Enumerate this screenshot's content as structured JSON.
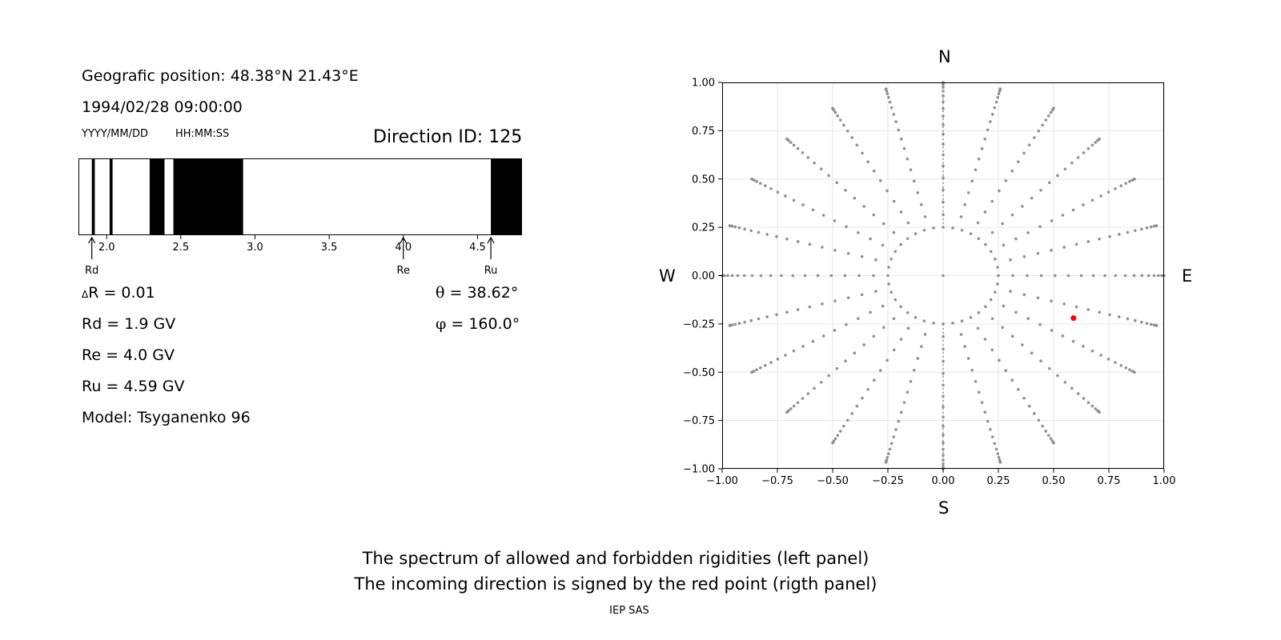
{
  "left_panel": {
    "position_text": "Geografic position: 48.38°N 21.43°E",
    "datetime_text": "1994/02/28 09:00:00",
    "date_format_label": "YYYY/MM/DD",
    "time_format_label": "HH:MM:SS",
    "direction_id_text": "Direction ID: 125",
    "delta_r_symbol": "Δ",
    "delta_r_text": "R = 0.01",
    "rd_text": "Rd = 1.9 GV",
    "re_text": "Re = 4.0 GV",
    "ru_text": "Ru = 4.59 GV",
    "model_text": "Model: Tsyganenko 96",
    "theta_symbol": "θ",
    "theta_text": "= 38.62°",
    "phi_symbol": "φ",
    "phi_text": "= 160.0°"
  },
  "right_panel": {
    "compass_n": "N",
    "compass_s": "S",
    "compass_w": "W",
    "compass_e": "E"
  },
  "footer": {
    "caption_line1": "The spectrum of allowed and forbidden rigidities (left panel)",
    "caption_line2": "The incoming direction is signed by the red point (rigth panel)",
    "institution": "IEP SAS"
  },
  "chart_data": [
    {
      "type": "bar",
      "name": "rigidity-spectrum",
      "xlim": [
        1.81,
        4.8
      ],
      "ticks": [
        2.0,
        2.5,
        3.0,
        3.5,
        4.0,
        4.5
      ],
      "tick_labels": [
        "2.0",
        "2.5",
        "3.0",
        "3.5",
        "4.0",
        "4.5"
      ],
      "forbidden_bands": [
        [
          1.9,
          1.92
        ],
        [
          2.02,
          2.04
        ],
        [
          2.29,
          2.39
        ],
        [
          2.45,
          2.92
        ],
        [
          4.59,
          4.8
        ]
      ],
      "markers": [
        {
          "label": "Rd",
          "value": 1.9
        },
        {
          "label": "Re",
          "value": 4.0
        },
        {
          "label": "Ru",
          "value": 4.59
        }
      ],
      "colors": {
        "forbidden": "#000000",
        "allowed": "#ffffff"
      }
    },
    {
      "type": "scatter",
      "name": "asymptotic-directions",
      "xlim": [
        -1.0,
        1.0
      ],
      "ylim": [
        -1.0,
        1.0
      ],
      "ticks": [
        -1.0,
        -0.75,
        -0.5,
        -0.25,
        0.0,
        0.25,
        0.5,
        0.75,
        1.0
      ],
      "tick_labels": [
        "−1.00",
        "−0.75",
        "−0.50",
        "−0.25",
        "0.00",
        "0.25",
        "0.50",
        "0.75",
        "1.00"
      ],
      "grid": true,
      "grid_points": {
        "zenith_steps_deg": [
          0,
          5,
          10,
          15,
          20,
          25,
          30,
          35,
          40,
          45,
          50,
          55,
          60,
          65,
          70,
          75,
          80,
          85,
          90
        ],
        "inner_ring_radius": 0.25,
        "inner_ring_points": 36,
        "azimuth_step_deg": 15,
        "color": "#909090"
      },
      "highlight_point": {
        "x": 0.59,
        "y": -0.22,
        "color": "#ff0000"
      }
    }
  ]
}
